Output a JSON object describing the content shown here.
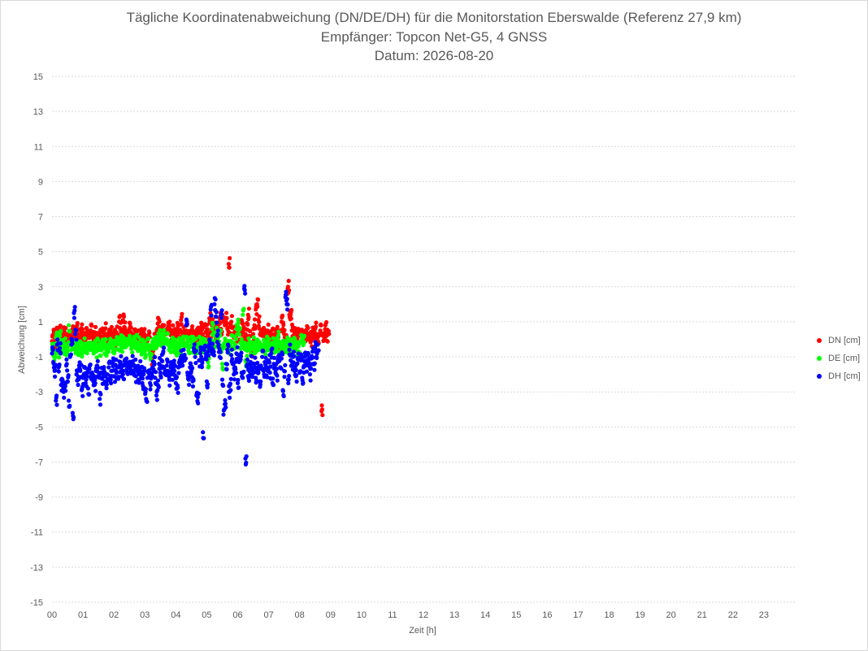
{
  "title_lines": [
    "Tägliche Koordinatenabweichung (DN/DE/DH) für die Monitorstation Eberswalde (Referenz 27,9 km)",
    "Empfänger: Topcon Net-G5, 4 GNSS",
    "Datum: 2026-08-20"
  ],
  "chart_data": {
    "type": "scatter",
    "title": "Tägliche Koordinatenabweichung (DN/DE/DH) für die Monitorstation Eberswalde (Referenz 27,9 km)",
    "subtitle": "Empfänger: Topcon Net-G5, 4 GNSS / Datum: 2026-08-20",
    "xlabel": "Zeit [h]",
    "ylabel": "Abweichung [cm]",
    "xlim": [
      0,
      24
    ],
    "ylim": [
      -15,
      15
    ],
    "yticks": [
      "15",
      "13",
      "11",
      "9",
      "7",
      "5",
      "3",
      "1",
      "-1",
      "-3",
      "-5",
      "-7",
      "-9",
      "-11",
      "-13",
      "-15"
    ],
    "ytick_values": [
      15,
      13,
      11,
      9,
      7,
      5,
      3,
      1,
      -1,
      -3,
      -5,
      -7,
      -9,
      -11,
      -13,
      -15
    ],
    "xticks": [
      "00",
      "01",
      "02",
      "03",
      "04",
      "05",
      "06",
      "07",
      "08",
      "09",
      "10",
      "11",
      "12",
      "13",
      "14",
      "15",
      "16",
      "17",
      "18",
      "19",
      "20",
      "21",
      "22",
      "23"
    ],
    "grid": "horizontal dotted",
    "legend_position": "right",
    "sample_interval_h": 0.041666,
    "series": [
      {
        "name": "DN [cm]",
        "color": "#ff0000",
        "values": [
          -0.1,
          0.2,
          -0.3,
          0.5,
          0.1,
          0.3,
          0.6,
          0.2,
          0.1,
          0.4,
          0.3,
          -0.2,
          0.1,
          0.3,
          -0.3,
          0.2,
          0.4,
          0.1,
          0.3,
          0.7,
          0.2,
          0.1,
          0.3,
          0.5,
          0.1,
          -0.1,
          0.3,
          0.6,
          0.4,
          0.2,
          0.5,
          0.1,
          0.3,
          0.4,
          0.2,
          0.0,
          0.3,
          0.2,
          0.1,
          0.4,
          0.2,
          0.6,
          0.3,
          0.1,
          0.3,
          0.2,
          0.4,
          0.3,
          0.2,
          0.0,
          0.4,
          0.2,
          1.0,
          0.6,
          0.3,
          1.1,
          0.7,
          0.5,
          0.3,
          0.2,
          0.6,
          0.4,
          0.3,
          0.2,
          0.3,
          0.1,
          0.0,
          0.2,
          -0.2,
          0.3,
          0.1,
          0.4,
          0.2,
          0.2,
          -0.1,
          0.1,
          -0.7,
          -1.1,
          -0.6,
          0.0,
          -0.2,
          0.4,
          0.9,
          0.7,
          0.1,
          0.5,
          0.2,
          0.8,
          0.4,
          0.3,
          0.6,
          0.8,
          0.3,
          0.5,
          0.2,
          0.4,
          0.3,
          0.6,
          0.1,
          0.5,
          1.1,
          0.2,
          0.7,
          0.3,
          0.5,
          0.1,
          0.3,
          0.2,
          0.5,
          0.1,
          0.3,
          -0.1,
          0.2,
          0.4,
          0.2,
          0.6,
          0.9,
          0.3,
          0.7,
          0.1,
          0.5,
          0.2,
          1.2,
          0.4,
          0.8,
          0.3,
          0.6,
          0.1,
          0.5,
          0.9,
          1.2,
          0.6,
          1.4,
          1.0,
          0.8,
          1.2,
          0.6,
          4.3,
          0.7,
          1.0,
          0.3,
          0.1,
          0.4,
          0.2,
          0.8,
          0.3,
          0.6,
          1.1,
          0.4,
          -0.2,
          0.3,
          0.9,
          1.4,
          0.2,
          -0.6,
          -0.9,
          0.3,
          0.8,
          1.7,
          2.0,
          1.1,
          0.6,
          0.4,
          0.2,
          0.3,
          0.1,
          0.3,
          0.5,
          0.0,
          0.2,
          0.1,
          0.3,
          -0.1,
          0.2,
          0.4,
          0.3,
          -0.3,
          0.5,
          1.0,
          0.6,
          0.3,
          0.1,
          2.6,
          3.0,
          1.4,
          1.4,
          0.5,
          0.2,
          0.3,
          0.1,
          0.4,
          0.6,
          0.4,
          0.2,
          0.1,
          0.3,
          0.2,
          0.5,
          0.3,
          0.2,
          0.1,
          -0.1,
          0.4,
          0.2,
          0.6,
          0.3,
          0.1,
          0.2,
          0.5,
          -4.1,
          0.2,
          0.3,
          0.8,
          0.2,
          0.4
        ]
      },
      {
        "name": "DE [cm]",
        "color": "#00ff00",
        "values": [
          -0.6,
          -0.9,
          -0.7,
          0.1,
          -0.3,
          -0.8,
          0.2,
          -0.4,
          -0.2,
          -0.5,
          -0.3,
          -0.9,
          -0.4,
          0.8,
          -0.3,
          -0.6,
          -0.2,
          -0.3,
          -0.5,
          -0.4,
          -0.6,
          -0.3,
          -0.5,
          -0.7,
          -0.4,
          -0.3,
          -0.6,
          -0.5,
          -0.2,
          -0.4,
          -0.6,
          -0.3,
          -0.5,
          -0.4,
          -0.7,
          -0.3,
          -0.5,
          -0.6,
          -0.4,
          -0.2,
          -0.5,
          -0.3,
          -0.6,
          -0.4,
          -0.5,
          -0.3,
          -0.2,
          -0.4,
          -0.6,
          -0.3,
          -0.2,
          0.0,
          -0.3,
          -0.1,
          -0.4,
          -0.2,
          -0.3,
          -0.1,
          0.0,
          -0.3,
          -0.1,
          -0.2,
          -0.4,
          -0.2,
          -0.3,
          -0.1,
          -0.5,
          -0.2,
          -0.4,
          -0.6,
          -0.3,
          -0.5,
          -0.7,
          -0.4,
          -0.3,
          -0.6,
          -0.8,
          -0.5,
          -0.3,
          -0.4,
          -0.2,
          -0.1,
          0.1,
          0.2,
          -0.1,
          0.0,
          0.2,
          0.1,
          -0.2,
          0.0,
          -0.3,
          -0.1,
          -0.4,
          -0.2,
          -0.5,
          -0.3,
          -0.6,
          -0.4,
          -0.2,
          -0.5,
          -0.3,
          -0.1,
          -0.6,
          -0.4,
          -0.2,
          -0.3,
          -0.5,
          -0.1,
          -0.4,
          -0.2,
          -0.6,
          -0.3,
          -0.5,
          -0.4,
          -0.2,
          -0.3,
          -0.1,
          -0.4,
          -0.2,
          -0.6,
          -0.3,
          -1.3,
          -0.5,
          -0.2,
          0.6,
          0.3,
          -0.1,
          0.4,
          0.1,
          -0.2,
          0.2,
          -0.4,
          -1.4,
          -0.5,
          -0.3,
          -0.2,
          -0.4,
          -0.6,
          -0.3,
          -0.1,
          -0.5,
          -0.2,
          -0.3,
          0.6,
          0.8,
          0.3,
          -0.2,
          0.0,
          1.4,
          -0.5,
          -1.2,
          -0.6,
          -0.3,
          -0.4,
          -0.5,
          -0.3,
          -0.2,
          -0.6,
          -0.4,
          -0.3,
          -0.5,
          -0.2,
          -0.4,
          -0.7,
          -0.3,
          -0.5,
          -0.2,
          -0.4,
          -0.3,
          -0.6,
          -0.4,
          -0.2,
          -0.5,
          -0.3,
          -0.6,
          0.1,
          -0.4,
          -0.2,
          -0.5,
          -0.3,
          -0.1,
          -0.4,
          -0.2,
          -0.6,
          -0.3,
          -0.5,
          -0.4,
          -0.2,
          -0.3,
          -0.5,
          -0.7,
          -0.4,
          -0.2,
          -0.1,
          0.0,
          0.1
        ]
      },
      {
        "name": "DH [cm]",
        "color": "#0000ff",
        "values": [
          -0.8,
          -1.3,
          -1.8,
          -3.5,
          -0.3,
          -1.6,
          -0.5,
          -2.6,
          -2.5,
          -3.0,
          -2.6,
          -1.5,
          -2.4,
          -3.5,
          -1.0,
          -0.3,
          -4.2,
          1.5,
          0.3,
          -2.0,
          -2.3,
          -1.5,
          -1.8,
          -2.9,
          -2.2,
          -1.6,
          -2.5,
          -2.0,
          -2.8,
          -1.7,
          -2.2,
          -1.9,
          -2.4,
          -2.6,
          -1.8,
          -1.5,
          -2.1,
          -3.4,
          -1.9,
          -2.2,
          -1.7,
          -2.4,
          -2.6,
          -2.0,
          -1.6,
          -2.3,
          -1.8,
          -1.4,
          -2.1,
          -1.5,
          -1.9,
          -2.2,
          -1.6,
          -1.3,
          -1.8,
          -2.0,
          -1.5,
          -1.2,
          -1.7,
          -1.9,
          -1.4,
          -1.6,
          -1.3,
          -1.8,
          -1.5,
          -2.1,
          -1.7,
          -2.3,
          -1.6,
          -1.9,
          -2.5,
          -2.0,
          -2.8,
          -3.4,
          -2.2,
          -1.8,
          -2.5,
          -2.0,
          -1.6,
          -1.3,
          -2.2,
          -3.2,
          -2.6,
          -1.4,
          -1.9,
          -1.2,
          -0.8,
          -1.6,
          -2.0,
          -1.5,
          -1.8,
          -2.3,
          -1.6,
          -2.0,
          -1.4,
          -1.8,
          -2.5,
          -2.8,
          -1.6,
          -1.2,
          -1.0,
          -1.5,
          -0.6,
          -1.2,
          0.8,
          -1.9,
          -2.3,
          -1.6,
          -1.8,
          -2.4,
          -0.5,
          -1.0,
          -3.2,
          -3.3,
          -1.2,
          -0.8,
          -1.5,
          -5.3,
          -0.6,
          -1.1,
          -2.4,
          -0.7,
          -0.3,
          1.7,
          -0.5,
          -0.8,
          2.0,
          1.3,
          0.2,
          -0.4,
          -1.0,
          1.4,
          -2.3,
          -4.3,
          -3.7,
          -1.4,
          -0.6,
          -3.0,
          -2.6,
          -0.9,
          -1.4,
          -2.0,
          -1.6,
          -0.8,
          -2.5,
          -1.3,
          -0.9,
          -1.9,
          -2.2,
          2.9,
          -6.8,
          -1.5,
          -2.1,
          -1.8,
          -1.3,
          -2.0,
          -1.7,
          -1.4,
          -2.2,
          -1.6,
          -1.9,
          -2.4,
          -1.5,
          -1.0,
          -1.8,
          -1.3,
          -2.1,
          -1.6,
          -1.2,
          -1.9,
          -0.8,
          -2.5,
          -1.4,
          -1.7,
          -2.0,
          -1.3,
          -0.9,
          -1.6,
          -1.1,
          -2.9,
          -1.8,
          2.4,
          2.0,
          -2.3,
          -0.6,
          -1.2,
          -1.5,
          -1.0,
          -1.7,
          -2.1,
          -1.4,
          -0.8,
          -1.9,
          -1.2,
          -2.2,
          -1.6,
          -1.0,
          -1.5,
          -0.9,
          -1.3,
          -2.0,
          -1.1,
          -0.7,
          -1.4,
          -0.5,
          -1.0,
          -0.3
        ]
      }
    ]
  }
}
